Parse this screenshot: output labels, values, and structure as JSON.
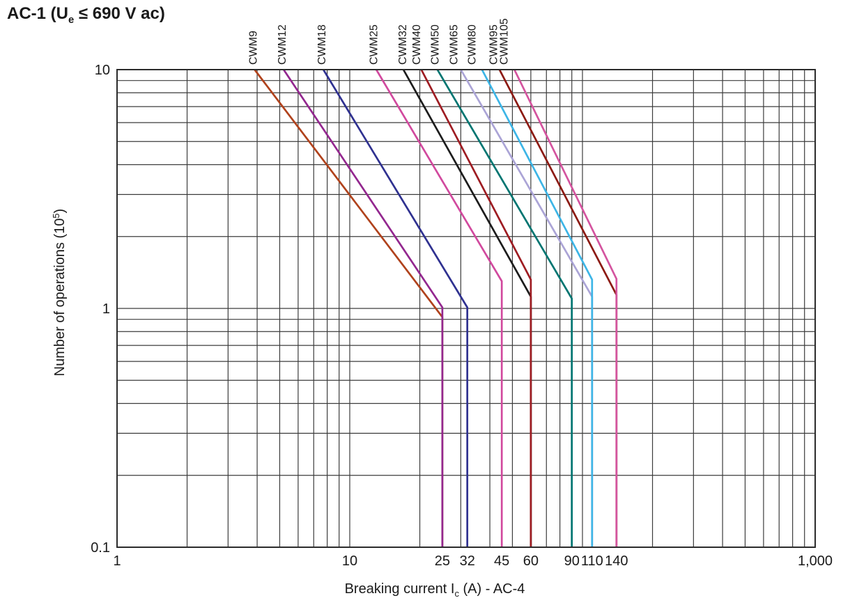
{
  "title": {
    "prefix": "AC-1 (U",
    "sub": "e",
    "suffix": " ≤ 690 V ac)"
  },
  "chart_data": {
    "type": "line",
    "x_scale": "log",
    "y_scale": "log",
    "xlim": [
      1,
      1000
    ],
    "ylim": [
      0.1,
      10
    ],
    "grid": "major-and-minor",
    "xlabel_parts": {
      "prefix": "Breaking current I",
      "sub": "c",
      "suffix": " (A) - AC-4"
    },
    "ylabel_parts": {
      "prefix": "Number of operations (10",
      "sup": "5",
      "suffix": ")"
    },
    "x_decade_ticks": [
      {
        "value": 1,
        "label": "1"
      },
      {
        "value": 10,
        "label": "10"
      },
      {
        "value": 1000,
        "label": "1,000"
      }
    ],
    "x_current_ticks": [
      {
        "value": 25,
        "label": "25"
      },
      {
        "value": 32,
        "label": "32"
      },
      {
        "value": 45,
        "label": "45"
      },
      {
        "value": 60,
        "label": "60"
      },
      {
        "value": 90,
        "label": "90"
      },
      {
        "value": 110,
        "label": "110"
      },
      {
        "value": 140,
        "label": "140"
      }
    ],
    "y_ticks": [
      {
        "value": 10,
        "label": "10"
      },
      {
        "value": 1,
        "label": "1"
      },
      {
        "value": 0.1,
        "label": "0.1"
      }
    ],
    "series": [
      {
        "name": "CWM9",
        "color": "#b0421c",
        "label_x": 3.85,
        "points": [
          [
            3.9,
            10
          ],
          [
            25,
            0.92
          ],
          [
            25,
            0.1
          ]
        ]
      },
      {
        "name": "CWM12",
        "color": "#93278f",
        "label_x": 5.12,
        "points": [
          [
            5.2,
            10
          ],
          [
            25,
            1.01
          ],
          [
            25,
            0.1
          ]
        ]
      },
      {
        "name": "CWM18",
        "color": "#2f3190",
        "label_x": 7.6,
        "points": [
          [
            7.7,
            10
          ],
          [
            32,
            1.01
          ],
          [
            32,
            0.1
          ]
        ]
      },
      {
        "name": "CWM25",
        "color": "#d1499e",
        "label_x": 12.7,
        "points": [
          [
            13,
            10
          ],
          [
            45,
            1.3
          ],
          [
            45,
            0.1
          ]
        ]
      },
      {
        "name": "CWM32",
        "color": "#1c1c1c",
        "label_x": 16.9,
        "points": [
          [
            17,
            10
          ],
          [
            60,
            1.12
          ],
          [
            60,
            0.1
          ]
        ]
      },
      {
        "name": "CWM40",
        "color": "#9e1c22",
        "label_x": 19.4,
        "points": [
          [
            20.3,
            10
          ],
          [
            60,
            1.32
          ],
          [
            60,
            0.1
          ]
        ]
      },
      {
        "name": "CWM50",
        "color": "#007571",
        "label_x": 23.3,
        "points": [
          [
            23.8,
            10
          ],
          [
            90,
            1.1
          ],
          [
            90,
            0.1
          ]
        ]
      },
      {
        "name": "CWM65",
        "color": "#aba4d6",
        "label_x": 28.0,
        "points": [
          [
            30,
            10
          ],
          [
            110,
            1.12
          ],
          [
            110,
            0.1
          ]
        ]
      },
      {
        "name": "CWM80",
        "color": "#3db5e6",
        "label_x": 33.5,
        "points": [
          [
            37,
            10
          ],
          [
            110,
            1.32
          ],
          [
            110,
            0.1
          ]
        ]
      },
      {
        "name": "CWM95",
        "color": "#8c1a12",
        "label_x": 41.5,
        "points": [
          [
            44,
            10
          ],
          [
            140,
            1.14
          ],
          [
            140,
            0.1
          ]
        ]
      },
      {
        "name": "CWM105",
        "color": "#d4549f",
        "label_x": 46.0,
        "points": [
          [
            51,
            10
          ],
          [
            140,
            1.33
          ],
          [
            140,
            0.1
          ]
        ]
      }
    ]
  },
  "colors": {
    "grid": "#3c3c3c",
    "frame": "#2b2b2b",
    "text": "#1a1a1a"
  }
}
